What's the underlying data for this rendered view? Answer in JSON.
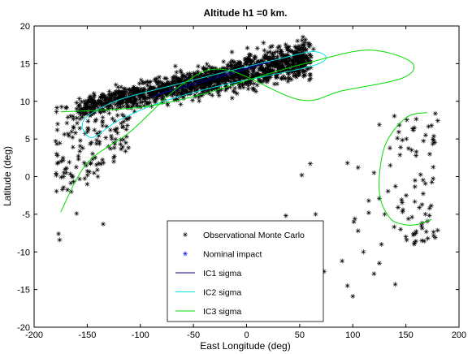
{
  "chart_data": {
    "type": "scatter",
    "title": "Altitude h1 =0 km.",
    "xlabel": "East Longitude (deg)",
    "ylabel": "Latitude (deg)",
    "xlim": [
      -200,
      200
    ],
    "ylim": [
      -20,
      20
    ],
    "xticks": [
      -200,
      -150,
      -100,
      -50,
      0,
      50,
      100,
      150,
      200
    ],
    "yticks": [
      -20,
      -15,
      -10,
      -5,
      0,
      5,
      10,
      15,
      20
    ],
    "grid": false,
    "legend_position": "bottom-center",
    "legend": [
      {
        "label": "Observational Monte Carlo",
        "marker": "asterisk",
        "color": "#000000"
      },
      {
        "label": "Nominal impact",
        "marker": "asterisk",
        "color": "#0000ff"
      },
      {
        "label": "IC1 sigma",
        "line": true,
        "color": "#00007a"
      },
      {
        "label": "IC2 sigma",
        "line": true,
        "color": "#00e5e5"
      },
      {
        "label": "IC3 sigma",
        "line": true,
        "color": "#00dd00"
      }
    ],
    "series": [
      {
        "name": "Observational Monte Carlo",
        "color": "#000000",
        "clusters": [
          {
            "region": "dense band",
            "from": [
              -160,
              9.0
            ],
            "to": [
              60,
              15.8
            ],
            "width_deg": 2.6,
            "count": 1500
          },
          {
            "region": "west fan",
            "x_range": [
              -180,
              -110
            ],
            "y_range": [
              -5,
              10
            ],
            "count": 140
          }
        ],
        "points": [
          [
            -177,
            -7.6
          ],
          [
            -176,
            -8.4
          ],
          [
            -135,
            -6.3
          ],
          [
            -160,
            -4.9
          ],
          [
            -178,
            2.8
          ],
          [
            -172,
            0.5
          ],
          [
            -165,
            -2.0
          ],
          [
            -150,
            -1.0
          ],
          [
            -140,
            0.0
          ],
          [
            -125,
            2.0
          ],
          [
            52,
            0.2
          ],
          [
            37,
            -5.2
          ],
          [
            65,
            -5.0
          ],
          [
            60,
            1.7
          ],
          [
            73,
            -12.6
          ],
          [
            100,
            -15.9
          ],
          [
            95,
            -14.5
          ],
          [
            90,
            -11.2
          ],
          [
            102,
            -5.6
          ],
          [
            101,
            -6.0
          ],
          [
            105,
            -7.2
          ],
          [
            110,
            -10.0
          ],
          [
            120,
            -12.9
          ],
          [
            125,
            -11.5
          ],
          [
            127,
            -9.0
          ],
          [
            115,
            -4.8
          ],
          [
            125,
            -2.9
          ],
          [
            140,
            -14.3
          ],
          [
            145,
            -7.0
          ],
          [
            150,
            -8.0
          ],
          [
            158,
            -8.8
          ],
          [
            165,
            -8.5
          ],
          [
            130,
            -5.0
          ],
          [
            95,
            1.8
          ],
          [
            105,
            1.2
          ],
          [
            115,
            -3.2
          ],
          [
            120,
            0.5
          ],
          [
            125,
            6.9
          ],
          [
            135,
            3.8
          ]
        ],
        "right_cluster": {
          "x_range": [
            125,
            180
          ],
          "y_range": [
            -9,
            8.5
          ],
          "count": 75
        }
      },
      {
        "name": "Nominal impact",
        "color": "#0000ff",
        "points": [
          [
            5,
            -10.2
          ]
        ]
      },
      {
        "name": "IC1 sigma",
        "color": "#00007a",
        "ellipse": {
          "center": [
            -65,
            12.4
          ],
          "points_note": "inner ellipse",
          "outline": [
            [
              -90,
              10.6
            ],
            [
              -30,
              13.0
            ],
            [
              25,
              15.4
            ],
            [
              -10,
              14.0
            ],
            [
              -60,
              12.0
            ],
            [
              -90,
              10.6
            ]
          ]
        }
      },
      {
        "name": "IC2 sigma",
        "color": "#00e5e5",
        "outline": [
          [
            -155,
            6.5
          ],
          [
            -150,
            8.0
          ],
          [
            -120,
            10.2
          ],
          [
            -70,
            12.1
          ],
          [
            -20,
            13.9
          ],
          [
            30,
            15.6
          ],
          [
            62,
            16.6
          ],
          [
            75,
            15.8
          ],
          [
            62,
            14.7
          ],
          [
            20,
            13.4
          ],
          [
            -30,
            11.9
          ],
          [
            -80,
            9.9
          ],
          [
            -120,
            7.5
          ],
          [
            -145,
            5.2
          ],
          [
            -155,
            6.5
          ]
        ]
      },
      {
        "name": "IC3 sigma",
        "color": "#00dd00",
        "outlines": [
          [
            [
              -175,
              8.6
            ],
            [
              -100,
              9.2
            ],
            [
              -40,
              11.0
            ],
            [
              10,
              13.2
            ],
            [
              60,
              15.2
            ],
            [
              115,
              16.8
            ],
            [
              155,
              15.2
            ],
            [
              147,
              13.1
            ],
            [
              90,
              11.4
            ],
            [
              50,
              10.2
            ],
            [
              -20,
              14.2
            ],
            [
              -60,
              12.3
            ],
            [
              -110,
              5.9
            ],
            [
              -150,
              1.8
            ],
            [
              -175,
              -4.7
            ]
          ],
          [
            [
              170,
              8.5
            ],
            [
              150,
              7.8
            ],
            [
              130,
              4.0
            ],
            [
              125,
              -2.0
            ],
            [
              135,
              -5.5
            ],
            [
              150,
              -6.4
            ],
            [
              162,
              -6.3
            ],
            [
              174,
              -5.7
            ]
          ]
        ]
      }
    ]
  }
}
